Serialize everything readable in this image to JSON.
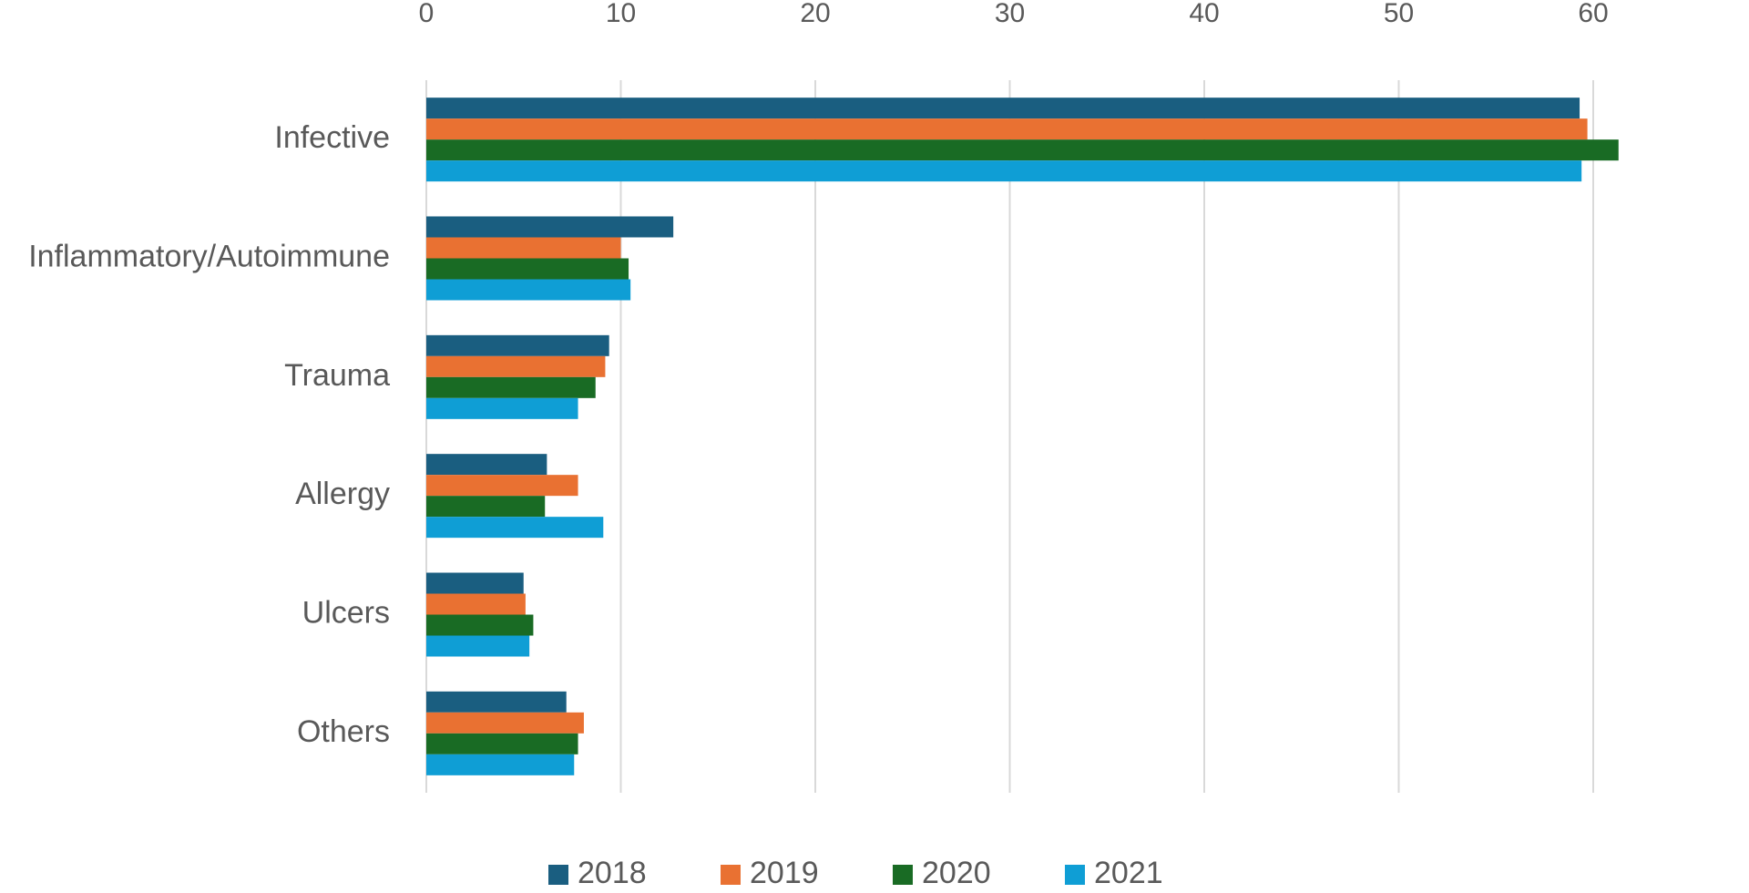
{
  "chart_data": {
    "type": "hbar",
    "categories": [
      "Infective",
      "Inflammatory/Autoimmune",
      "Trauma",
      "Allergy",
      "Ulcers",
      "Others"
    ],
    "series": [
      {
        "name": "2018",
        "color": "#1a5e80",
        "values": [
          59.3,
          12.7,
          9.4,
          6.2,
          5.0,
          7.2
        ]
      },
      {
        "name": "2019",
        "color": "#e97132",
        "values": [
          59.7,
          10.0,
          9.2,
          7.8,
          5.1,
          8.1
        ]
      },
      {
        "name": "2020",
        "color": "#196b24",
        "values": [
          61.3,
          10.4,
          8.7,
          6.1,
          5.5,
          7.8
        ]
      },
      {
        "name": "2021",
        "color": "#0f9ed5",
        "values": [
          59.4,
          10.5,
          7.8,
          9.1,
          5.3,
          7.6
        ]
      }
    ],
    "xlim": [
      0,
      60
    ],
    "xticks": [
      0,
      10,
      20,
      30,
      40,
      50,
      60
    ],
    "grid": true,
    "legend": "bottom"
  }
}
